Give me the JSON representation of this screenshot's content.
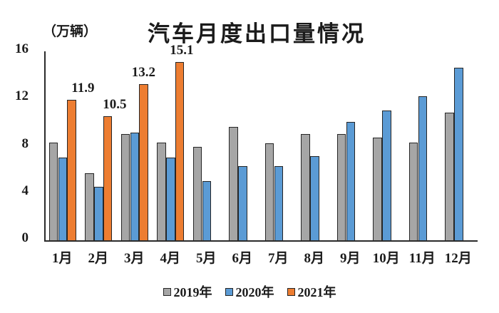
{
  "chart_data": {
    "type": "bar",
    "title": "汽车月度出口量情况",
    "unit_label": "（万辆）",
    "categories": [
      "1月",
      "2月",
      "3月",
      "4月",
      "5月",
      "6月",
      "7月",
      "8月",
      "9月",
      "10月",
      "11月",
      "12月"
    ],
    "series": [
      {
        "name": "2019年",
        "color": "#a6a6a6",
        "values": [
          8.3,
          5.7,
          9.0,
          8.3,
          7.9,
          9.6,
          8.2,
          9.0,
          9.0,
          8.7,
          8.3,
          10.8
        ]
      },
      {
        "name": "2020年",
        "color": "#5b9bd5",
        "values": [
          7.0,
          4.5,
          9.1,
          7.0,
          5.0,
          6.3,
          6.3,
          7.1,
          10.0,
          11.0,
          12.2,
          14.6
        ]
      },
      {
        "name": "2021年",
        "color": "#ed7d31",
        "values": [
          11.9,
          10.5,
          13.2,
          15.1,
          null,
          null,
          null,
          null,
          null,
          null,
          null,
          null
        ],
        "data_labels": [
          "11.9",
          "10.5",
          "13.2",
          "15.1"
        ]
      }
    ],
    "y_ticks": [
      0,
      4,
      8,
      12,
      16
    ],
    "ylim": [
      0,
      16
    ],
    "grid": false,
    "legend_position": "bottom",
    "outline_color": "#262626",
    "text_color": "#1b1b1b"
  }
}
